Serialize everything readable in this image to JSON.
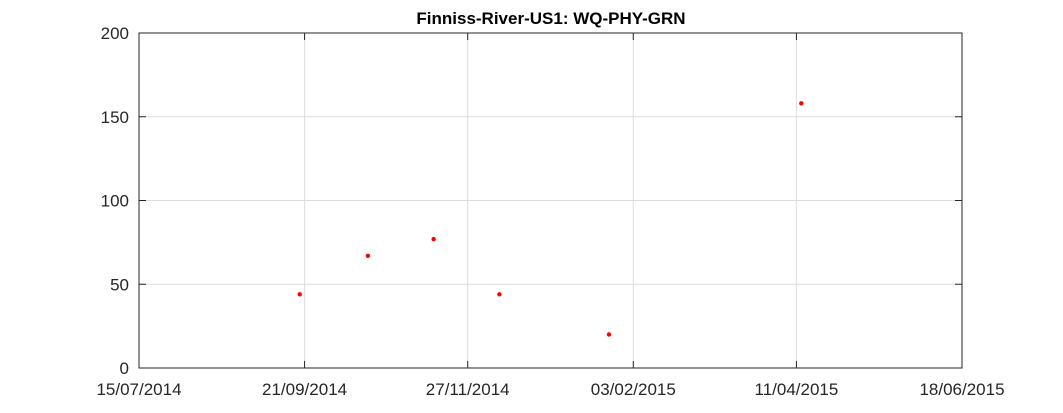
{
  "chart_data": {
    "type": "scatter",
    "title": "Finniss-River-US1: WQ-PHY-GRN",
    "xlabel": "",
    "ylabel": "",
    "x_type": "date",
    "xlim": [
      "2014-07-15",
      "2015-06-18"
    ],
    "ylim": [
      0,
      200
    ],
    "x_ticks": [
      "2014-07-15",
      "2014-09-21",
      "2014-11-27",
      "2015-02-03",
      "2015-04-11",
      "2015-06-18"
    ],
    "x_tick_labels": [
      "15/07/2014",
      "21/09/2014",
      "27/11/2014",
      "03/02/2015",
      "11/04/2015",
      "18/06/2015"
    ],
    "y_ticks": [
      0,
      50,
      100,
      150,
      200
    ],
    "y_tick_labels": [
      "0",
      "50",
      "100",
      "150",
      "200"
    ],
    "grid": true,
    "marker_color": "#ff0000",
    "series": [
      {
        "x": [
          "2014-09-19",
          "2014-10-17",
          "2014-11-13",
          "2014-12-10",
          "2015-01-24",
          "2015-04-13"
        ],
        "y": [
          44,
          67,
          77,
          44,
          20,
          158
        ]
      }
    ]
  }
}
